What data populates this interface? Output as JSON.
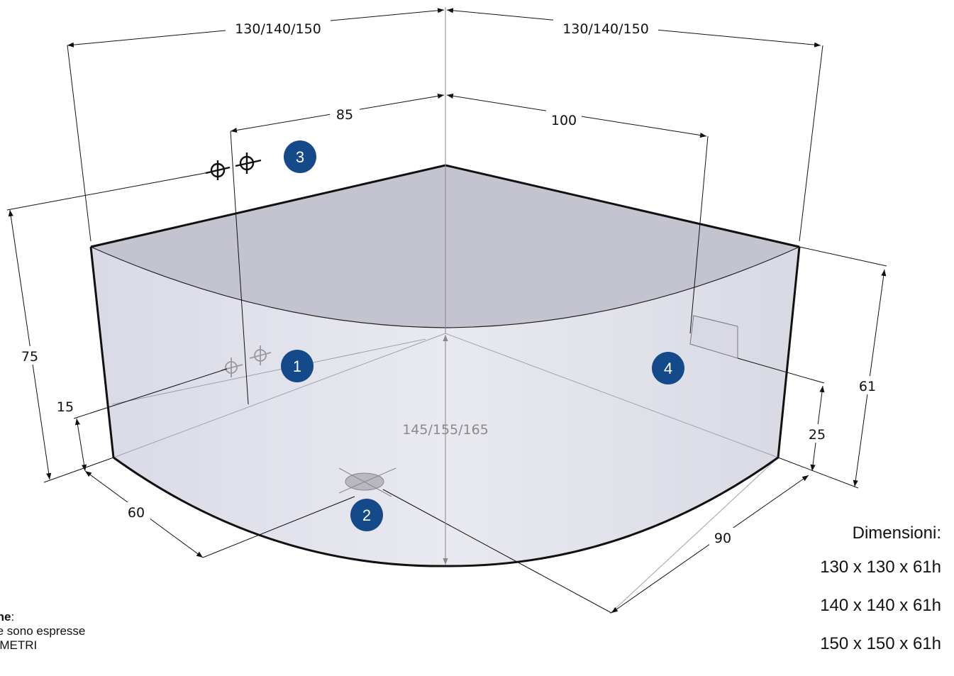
{
  "dimensions": {
    "top_left_width": "130/140/150",
    "top_right_width": "130/140/150",
    "inner_left": "85",
    "inner_right": "100",
    "height_total": "75",
    "left_low": "15",
    "front_left": "60",
    "diagonal": "145/155/165",
    "front_right": "90",
    "right_height": "61",
    "right_low": "25"
  },
  "markers": [
    "1",
    "2",
    "3",
    "4"
  ],
  "colors": {
    "badge": "#154a8a",
    "top_face": "#c3c4cf",
    "body": "#e4e5ee"
  },
  "panel": {
    "heading": "Dimensioni:",
    "sizes": [
      "130 x 130 x 61h",
      "140 x 140 x 61h",
      "150 x 150 x 61h"
    ]
  },
  "note": {
    "title": "zione",
    "suffix": ":",
    "line1": "sure sono espresse",
    "line2": "NTIMETRI"
  }
}
